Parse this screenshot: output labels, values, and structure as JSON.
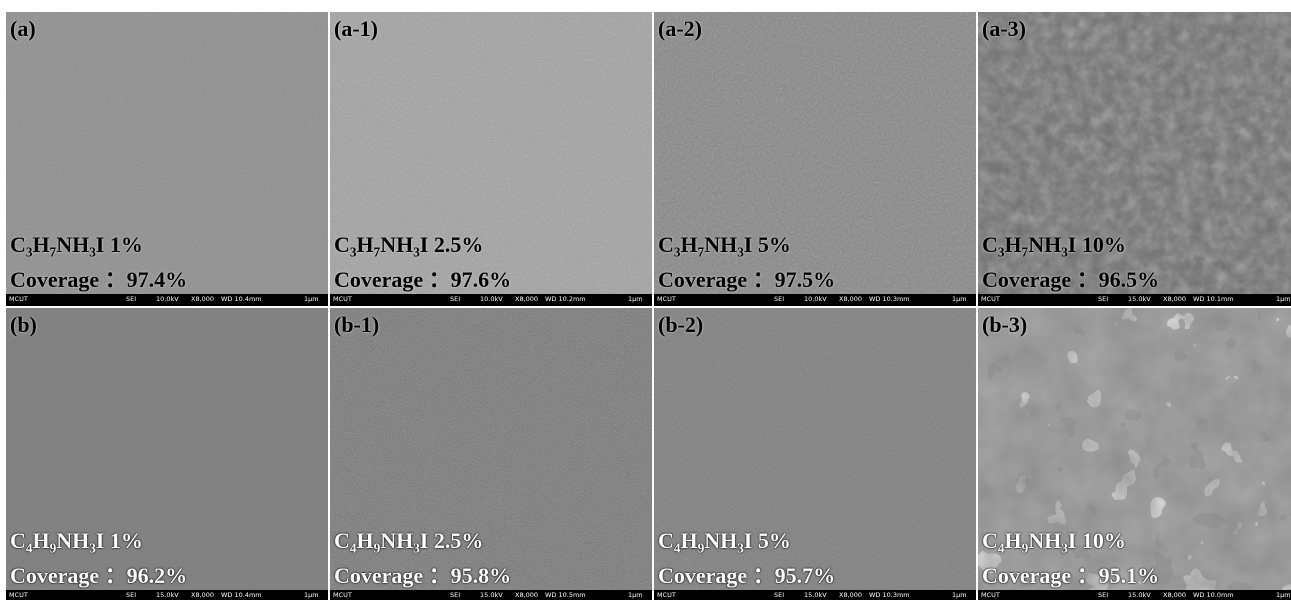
{
  "panels": [
    {
      "label": "(a)",
      "formula": "C₃H₇NH₃I",
      "concentration": "1%",
      "coverage": "Coverage ：97.4%",
      "bar": [
        "MCUT",
        "SEI",
        "10.0kV",
        "X8,000",
        "WD 10.4mm",
        "1μm"
      ]
    },
    {
      "label": "(a-1)",
      "formula": "C₃H₇NH₃I",
      "concentration": "2.5%",
      "coverage": "Coverage ：97.6%",
      "bar": [
        "MCUT",
        "SEI",
        "10.0kV",
        "X8,000",
        "WD 10.2mm",
        "1μm"
      ]
    },
    {
      "label": "(a-2)",
      "formula": "C₃H₇NH₃I",
      "concentration": "5%",
      "coverage": "Coverage ：97.5%",
      "bar": [
        "MCUT",
        "SEI",
        "10.0kV",
        "X8,000",
        "WD 10.3mm",
        "1μm"
      ]
    },
    {
      "label": "(a-3)",
      "formula": "C₃H₇NH₃I",
      "concentration": "10%",
      "coverage": "Coverage ：96.5%",
      "bar": [
        "MCUT",
        "SEI",
        "15.0kV",
        "X8,000",
        "WD 10.1mm",
        "1μm"
      ]
    },
    {
      "label": "(b)",
      "formula": "C₄H₉NH₃I",
      "concentration": "1%",
      "coverage": "Coverage ：96.2%",
      "bar": [
        "MCUT",
        "SEI",
        "15.0kV",
        "X8,000",
        "WD 10.4mm",
        "1μm"
      ]
    },
    {
      "label": "(b-1)",
      "formula": "C₄H₉NH₃I",
      "concentration": "2.5%",
      "coverage": "Coverage ：95.8%",
      "bar": [
        "MCUT",
        "SEI",
        "15.0kV",
        "X8,000",
        "WD 10.5mm",
        "1μm"
      ]
    },
    {
      "label": "(b-2)",
      "formula": "C₄H₉NH₃I",
      "concentration": "5%",
      "coverage": "Coverage ：95.7%",
      "bar": [
        "MCUT",
        "SEI",
        "15.0kV",
        "X8,000",
        "WD 10.3mm",
        "1μm"
      ]
    },
    {
      "label": "(b-3)",
      "formula": "C₄H₉NH₃I",
      "concentration": "10%",
      "coverage": "Coverage ：95.1%",
      "bar": [
        "MCUT",
        "SEI",
        "15.0kV",
        "X8,000",
        "WD 10.0mm",
        "1μm"
      ]
    }
  ]
}
